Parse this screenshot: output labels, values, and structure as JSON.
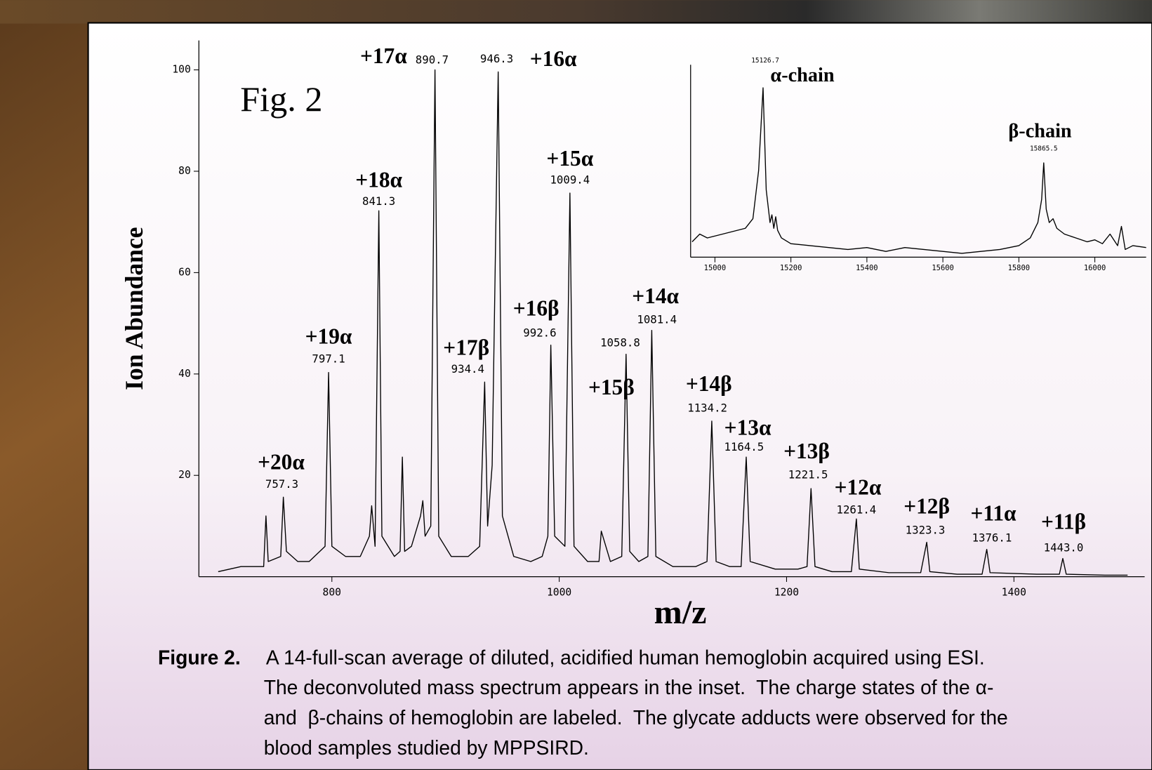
{
  "chart_data": [
    {
      "type": "line",
      "color": "#000000",
      "annotation": "Fig. 2",
      "xlabel": "m/z",
      "ylabel": "Ion Abundance",
      "xlim": [
        683,
        1515
      ],
      "ylim": [
        0,
        105.8
      ],
      "xticks": [
        800,
        1000,
        1200,
        1400
      ],
      "yticks": [
        20,
        40,
        60,
        80,
        100
      ],
      "x": [
        700,
        720,
        740,
        742,
        744,
        755,
        757.3,
        760,
        770,
        780,
        794,
        797.1,
        800,
        812,
        825,
        833,
        835,
        838,
        841.3,
        844,
        855,
        860,
        862,
        864,
        870,
        878,
        880,
        882,
        887,
        890.7,
        894,
        905,
        920,
        930,
        934.4,
        937,
        941,
        946.3,
        950,
        960,
        975,
        985,
        990,
        992.6,
        996,
        1005,
        1009.4,
        1013,
        1025,
        1035,
        1037,
        1045,
        1055,
        1058.8,
        1062,
        1070,
        1078,
        1081.4,
        1085,
        1100,
        1120,
        1130,
        1134.2,
        1138,
        1150,
        1160,
        1164.5,
        1168,
        1190,
        1210,
        1218,
        1221.5,
        1225,
        1240,
        1257,
        1261.4,
        1264,
        1290,
        1318,
        1323.3,
        1326,
        1350,
        1372,
        1376.1,
        1379,
        1420,
        1440,
        1443,
        1446,
        1480,
        1500
      ],
      "values": [
        1,
        2,
        2,
        12,
        3,
        4,
        15.7,
        5,
        3,
        3,
        6,
        40.3,
        6,
        4,
        4,
        8,
        14,
        6,
        72.2,
        8,
        4,
        5,
        23.6,
        5,
        6,
        12,
        15,
        8,
        10,
        100,
        8,
        4,
        4,
        6,
        38.4,
        10,
        22,
        99.6,
        12,
        4,
        3,
        4,
        8,
        45.7,
        8,
        6,
        75.7,
        6,
        3,
        3,
        9,
        3,
        4,
        43.9,
        5,
        3,
        4,
        48.6,
        4,
        2,
        2,
        3,
        30.7,
        3,
        2,
        2,
        23.6,
        3,
        1.5,
        1.5,
        2,
        17.4,
        2,
        1,
        1,
        11.4,
        1.5,
        0.8,
        0.8,
        6.8,
        1,
        0.5,
        0.5,
        5.4,
        0.8,
        0.5,
        0.5,
        3.6,
        0.5,
        0.3,
        0.3
      ],
      "peaks": {
        "labels": [
          "+20α",
          "+19α",
          "+18α",
          "+17α",
          "+17β",
          "+16α",
          "+16β",
          "+15α",
          "+15β",
          "+14α",
          "+14β",
          "+13α",
          "+13β",
          "+12α",
          "+12β",
          "+11α",
          "+11β"
        ],
        "x": [
          757.3,
          797.1,
          841.3,
          890.7,
          934.4,
          946.3,
          992.6,
          1009.4,
          1058.8,
          1081.4,
          1134.2,
          1164.5,
          1221.5,
          1261.4,
          1323.3,
          1376.1,
          1443.0
        ],
        "x_labels": [
          "757.3",
          "797.1",
          "841.3",
          "890.7",
          "934.4",
          "946.3",
          "992.6",
          "1009.4",
          "1058.8",
          "1081.4",
          "1134.2",
          "1164.5",
          "1221.5",
          "1261.4",
          "1323.3",
          "1376.1",
          "1443.0"
        ]
      }
    },
    {
      "type": "line",
      "color": "#000000",
      "xlim": [
        14936,
        16135
      ],
      "ylim": [
        0,
        100
      ],
      "xticks": [
        15000,
        15200,
        15400,
        15600,
        15800,
        16000
      ],
      "x": [
        14940,
        14960,
        14980,
        15000,
        15040,
        15080,
        15100,
        15115,
        15126.7,
        15135,
        15145,
        15150,
        15155,
        15160,
        15165,
        15175,
        15200,
        15250,
        15300,
        15350,
        15400,
        15450,
        15500,
        15550,
        15600,
        15650,
        15700,
        15750,
        15800,
        15830,
        15850,
        15860,
        15865.5,
        15872,
        15880,
        15890,
        15900,
        15920,
        15950,
        15980,
        16000,
        16020,
        16040,
        16060,
        16070,
        16080,
        16100,
        16135
      ],
      "values": [
        8,
        12,
        10,
        11,
        13,
        15,
        20,
        45,
        88,
        35,
        18,
        22,
        15,
        21,
        14,
        10,
        7,
        6,
        5,
        4,
        5,
        3,
        5,
        4,
        3,
        2,
        3,
        4,
        6,
        10,
        18,
        30,
        49,
        25,
        18,
        20,
        15,
        12,
        10,
        8,
        9,
        7,
        12,
        6,
        16,
        4,
        6,
        5
      ],
      "peaks": {
        "labels": [
          "α-chain",
          "β-chain"
        ],
        "x": [
          15126.7,
          15865.5
        ],
        "x_labels": [
          "15126.7",
          "15865.5"
        ]
      }
    }
  ],
  "caption": {
    "label": "Figure 2.",
    "lines": [
      "A 14-full-scan average of diluted, acidified human hemoglobin acquired using ESI.",
      "The deconvoluted mass spectrum appears in the inset.  The charge states of the α-",
      "and  β-chains of hemoglobin are labeled.  The glycate adducts were observed for the",
      "blood samples studied by MPPSIRD."
    ]
  }
}
